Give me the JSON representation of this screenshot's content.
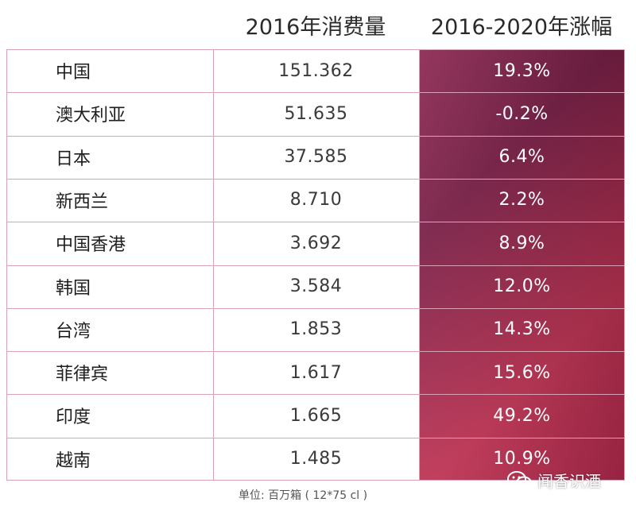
{
  "headers": {
    "consumption": "2016年消费量",
    "growth": "2016-2020年涨幅"
  },
  "chart_data": {
    "type": "table",
    "columns": [
      "",
      "2016年消费量",
      "2016-2020年涨幅"
    ],
    "rows": [
      {
        "region": "中国",
        "consumption": "151.362",
        "growth": "19.3%"
      },
      {
        "region": "澳大利亚",
        "consumption": "51.635",
        "growth": "-0.2%"
      },
      {
        "region": "日本",
        "consumption": "37.585",
        "growth": "6.4%"
      },
      {
        "region": "新西兰",
        "consumption": "8.710",
        "growth": "2.2%"
      },
      {
        "region": "中国香港",
        "consumption": "3.692",
        "growth": "8.9%"
      },
      {
        "region": "韩国",
        "consumption": "3.584",
        "growth": "12.0%"
      },
      {
        "region": "台湾",
        "consumption": "1.853",
        "growth": "14.3%"
      },
      {
        "region": "菲律宾",
        "consumption": "1.617",
        "growth": "15.6%"
      },
      {
        "region": "印度",
        "consumption": "1.665",
        "growth": "49.2%"
      },
      {
        "region": "越南",
        "consumption": "1.485",
        "growth": "10.9%"
      }
    ]
  },
  "footer": {
    "unit": "单位: 百万箱 ( 12*75 cl )"
  },
  "watermark": {
    "text": "闻香识酒",
    "icon": "wechat-icon"
  },
  "colors": {
    "accent_dark": "#7a2048",
    "accent_light": "#c23556",
    "grid": "#d9a3b5"
  }
}
